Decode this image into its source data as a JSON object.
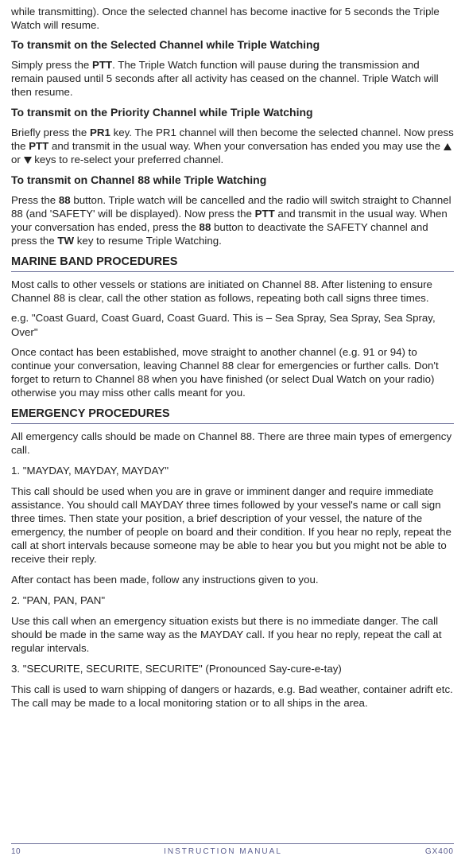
{
  "intro_tail": "while transmitting). Once the selected channel has become inactive for 5 seconds the Triple Watch will resume.",
  "s1": {
    "heading": "To transmit on the Selected Channel while Triple Watching",
    "p1a": "Simply press the ",
    "b1": "PTT",
    "p1b": ". The Triple Watch function will pause during the transmission and remain paused until 5 seconds after all activity has ceased on the channel. Triple Watch will then resume."
  },
  "s2": {
    "heading": "To transmit on the Priority Channel while Triple Watching",
    "p1a": "Briefly press the ",
    "b1": "PR1",
    "p1b": " key. The PR1 channel will then become the selected channel. Now press the ",
    "b2": "PTT",
    "p1c": " and transmit in the usual way. When your conversation has ended you may use the ",
    "or": " or ",
    "p1d": " keys to re-select your preferred channel."
  },
  "s3": {
    "heading": "To transmit on Channel 88 while Triple Watching",
    "p1a": "Press the ",
    "b1": "88",
    "p1b": " button. Triple watch will be cancelled and the radio will switch straight to Channel 88 (and 'SAFETY' will be displayed). Now press the ",
    "b2": "PTT",
    "p1c": " and transmit in the usual way. When your conversation has ended, press the ",
    "b3": "88",
    "p1d": " button to deactivate the SAFETY channel and press the ",
    "b4": "TW",
    "p1e": " key to resume Triple Watching."
  },
  "marine": {
    "heading": "MARINE BAND PROCEDURES",
    "p1": "Most calls to other vessels or stations are initiated on Channel 88. After listening to ensure Channel 88 is clear, call the other station as follows, repeating both call signs three times.",
    "p2": "e.g. \"Coast Guard, Coast Guard, Coast Guard. This is – Sea Spray, Sea Spray, Sea Spray, Over\"",
    "p3": "Once contact has been established, move straight to another channel (e.g. 91 or 94) to continue your conversation, leaving Channel 88 clear for emergencies or further calls. Don't forget to return to Channel 88 when you have finished (or select Dual Watch on your radio) otherwise you may miss other calls meant for you."
  },
  "emerg": {
    "heading": "EMERGENCY PROCEDURES",
    "p1": "All emergency calls should be made on Channel 88. There are three main types of emergency call.",
    "i1": "1. \"MAYDAY, MAYDAY, MAYDAY\"",
    "p2": "This call should be used when you are in grave or imminent danger and require immediate assistance. You should call MAYDAY three times followed by your vessel's name or call sign three times. Then state your position, a brief description of your vessel, the nature of the emergency, the number of people on board and their condition. If you hear no reply, repeat the call at short intervals because someone may be able to hear you but you might not be able to receive their reply.",
    "p3": "After contact has been made, follow any instructions given to you.",
    "i2": "2. \"PAN, PAN, PAN\"",
    "p4": "Use this call when an emergency situation exists but there is no immediate danger. The call should be made in the same way as the MAYDAY call. If you hear no reply, repeat the call at regular intervals.",
    "i3": "3. \"SECURITE, SECURITE, SECURITE\" (Pronounced Say-cure-e-tay)",
    "p5": "This call is used to warn shipping of dangers or hazards, e.g. Bad weather, container adrift etc. The call may be made to a local monitoring station or to all ships in the area."
  },
  "footer": {
    "page": "10",
    "title": "INSTRUCTION MANUAL",
    "model": "GX400"
  }
}
